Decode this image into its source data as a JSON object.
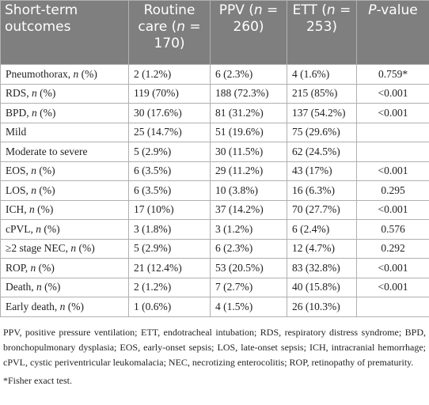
{
  "table": {
    "header": [
      "Short-term outcomes",
      "Routine care (n = 170)",
      "PPV (n = 260)",
      "ETT (n = 253)",
      "P-value"
    ],
    "rows": [
      [
        "Pneumothorax, n (%)",
        "2 (1.2%)",
        "6 (2.3%)",
        "4 (1.6%)",
        "0.759*"
      ],
      [
        "RDS, n (%)",
        "119 (70%)",
        "188 (72.3%)",
        "215 (85%)",
        "<0.001"
      ],
      [
        "BPD, n (%)",
        "30 (17.6%)",
        "81 (31.2%)",
        "137 (54.2%)",
        "<0.001"
      ],
      [
        "Mild",
        "25 (14.7%)",
        "51 (19.6%)",
        "75 (29.6%)"
      ],
      [
        "Moderate to severe",
        "5 (2.9%)",
        "30 (11.5%)",
        "62 (24.5%)"
      ],
      [
        "EOS, n (%)",
        "6 (3.5%)",
        "29 (11.2%)",
        "43 (17%)",
        "<0.001"
      ],
      [
        "LOS, n (%)",
        "6 (3.5%)",
        "10 (3.8%)",
        "16 (6.3%)",
        "0.295"
      ],
      [
        "ICH, n (%)",
        "17 (10%)",
        "37 (14.2%)",
        "70 (27.7%)",
        "<0.001"
      ],
      [
        "cPVL, n (%)",
        "3 (1.8%)",
        "3 (1.2%)",
        "6 (2.4%)",
        "0.576"
      ],
      [
        "≥2 stage NEC, n (%)",
        "5 (2.9%)",
        "6 (2.3%)",
        "12 (4.7%)",
        "0.292"
      ],
      [
        "ROP, n (%)",
        "21 (12.4%)",
        "53 (20.5%)",
        "83 (32.8%)",
        "<0.001"
      ],
      [
        "Death, n (%)",
        "2 (1.2%)",
        "7 (2.7%)",
        "40 (15.8%)",
        "<0.001"
      ],
      [
        "Early death, n (%)",
        "1 (0.6%)",
        "4 (1.5%)",
        "26 (10.3%)"
      ]
    ]
  },
  "footnotes": [
    "PPV, positive pressure ventilation; ETT, endotracheal intubation; RDS, respiratory distress syndrome; BPD, bronchopulmonary dysplasia; EOS, early-onset sepsis; LOS, late-onset sepsis; ICH, intracranial hemorrhage; cPVL, cystic periventricular leukomalacia; NEC, necrotizing enterocolitis; ROP, retinopathy of prematurity.",
    "*Fisher exact test."
  ]
}
